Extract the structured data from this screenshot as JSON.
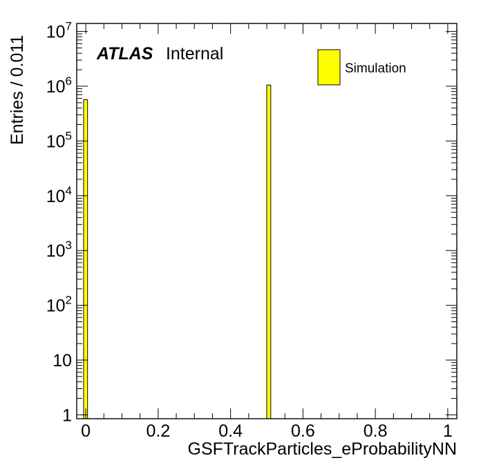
{
  "chart_data": {
    "type": "bar",
    "xlabel": "GSFTrackParticles_eProbabilityNN",
    "ylabel": "Entries / 0.011",
    "xlim": [
      -0.025,
      1.025
    ],
    "ylim": [
      0.85,
      14000000
    ],
    "log_y": true,
    "bin_width": 0.011,
    "x_ticks": [
      {
        "value": 0,
        "label": "0"
      },
      {
        "value": 0.2,
        "label": "0.2"
      },
      {
        "value": 0.4,
        "label": "0.4"
      },
      {
        "value": 0.6,
        "label": "0.6"
      },
      {
        "value": 0.8,
        "label": "0.8"
      },
      {
        "value": 1,
        "label": "1"
      }
    ],
    "y_ticks": [
      {
        "value": 1,
        "base": "1",
        "exp": ""
      },
      {
        "value": 10,
        "base": "10",
        "exp": ""
      },
      {
        "value": 100,
        "base": "10",
        "exp": "2"
      },
      {
        "value": 1000,
        "base": "10",
        "exp": "3"
      },
      {
        "value": 10000,
        "base": "10",
        "exp": "4"
      },
      {
        "value": 100000,
        "base": "10",
        "exp": "5"
      },
      {
        "value": 1000000,
        "base": "10",
        "exp": "6"
      },
      {
        "value": 10000000,
        "base": "10",
        "exp": "7"
      }
    ],
    "series": [
      {
        "name": "Simulation",
        "color": "#ffff00",
        "bins": [
          {
            "x_low": -0.006,
            "x_high": 0.005,
            "value": 570000
          },
          {
            "x_low": 0.5,
            "x_high": 0.511,
            "value": 1050000
          }
        ]
      }
    ],
    "legend": {
      "label": "Simulation",
      "position": "top-right"
    },
    "annotation": {
      "experiment": "ATLAS",
      "status": "Internal"
    }
  }
}
